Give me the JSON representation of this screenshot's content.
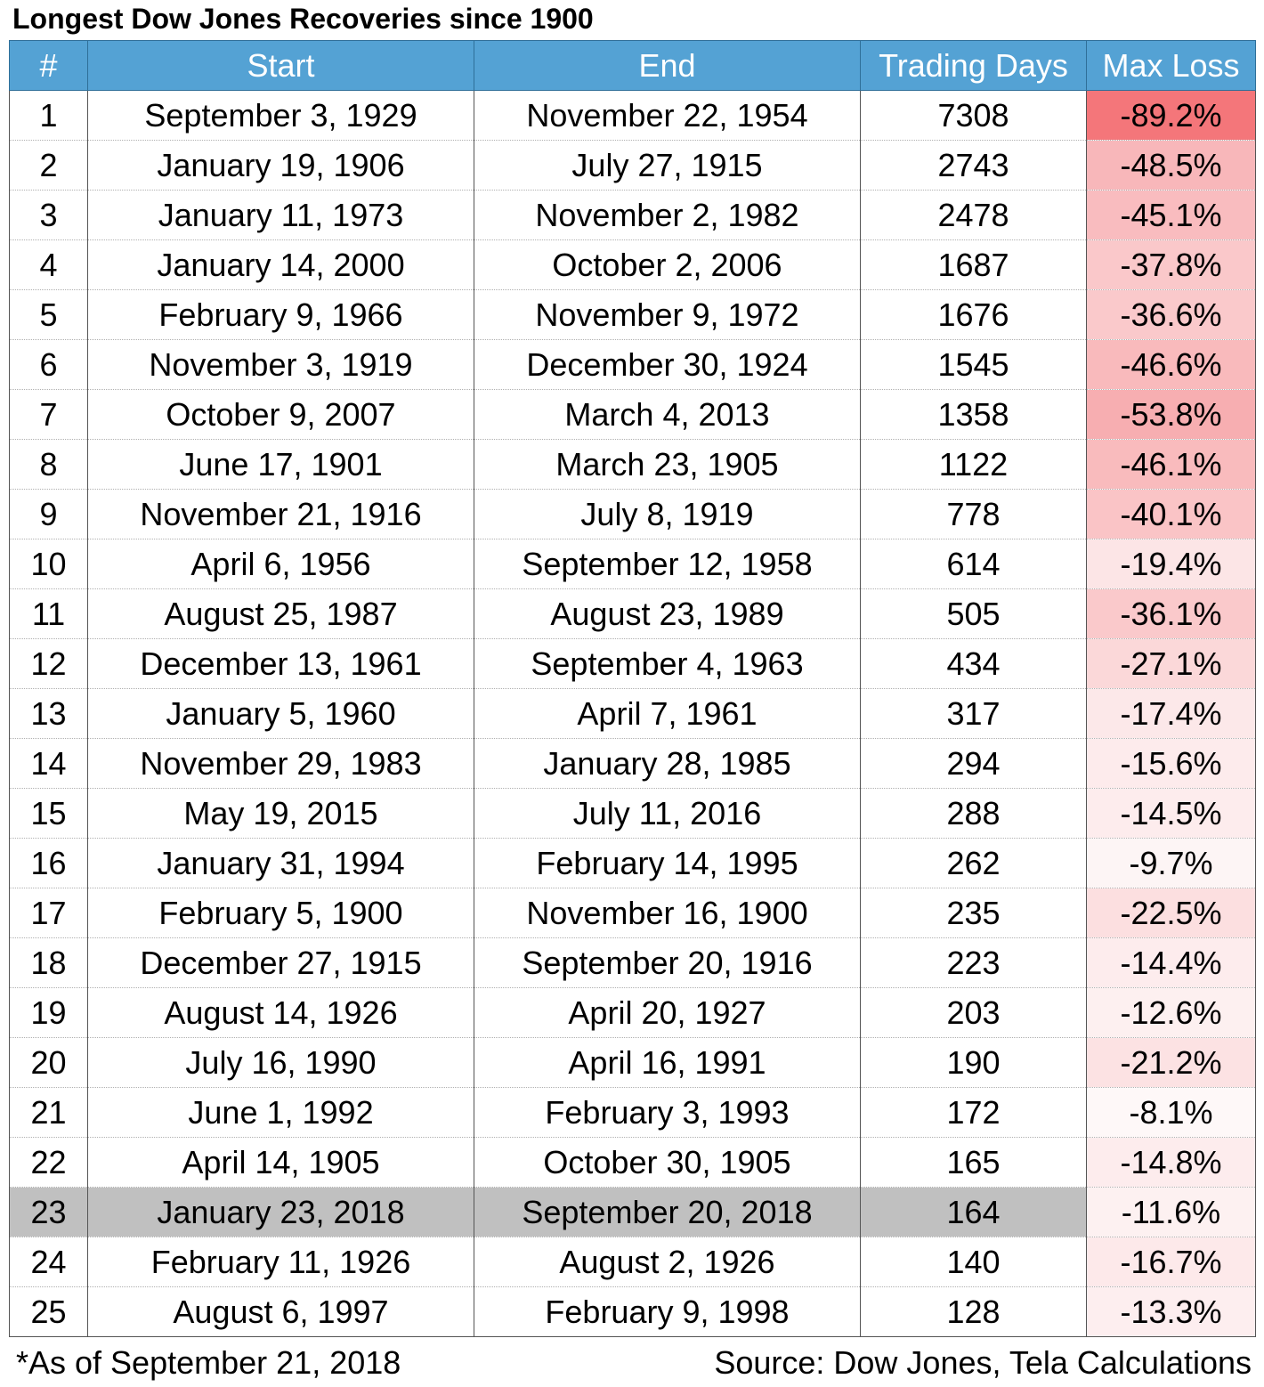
{
  "title": "Longest Dow Jones Recoveries since 1900",
  "table": {
    "headers": [
      "#",
      "Start",
      "End",
      "Trading Days",
      "Max Loss"
    ],
    "rows": [
      {
        "n": "1",
        "start": "September 3, 1929",
        "end": "November 22, 1954",
        "days": "7308",
        "loss": "-89.2%",
        "loss_value": -89.2,
        "loss_color": "#f4767a"
      },
      {
        "n": "2",
        "start": "January 19, 1906",
        "end": "July 27, 1915",
        "days": "2743",
        "loss": "-48.5%",
        "loss_value": -48.5,
        "loss_color": "#f8b7ba"
      },
      {
        "n": "3",
        "start": "January 11, 1973",
        "end": "November 2, 1982",
        "days": "2478",
        "loss": "-45.1%",
        "loss_value": -45.1,
        "loss_color": "#f9bcbf"
      },
      {
        "n": "4",
        "start": "January 14, 2000",
        "end": "October 2, 2006",
        "days": "1687",
        "loss": "-37.8%",
        "loss_value": -37.8,
        "loss_color": "#fac8ca"
      },
      {
        "n": "5",
        "start": "February 9, 1966",
        "end": "November 9, 1972",
        "days": "1676",
        "loss": "-36.6%",
        "loss_value": -36.6,
        "loss_color": "#fac9cb"
      },
      {
        "n": "6",
        "start": "November 3, 1919",
        "end": "December 30, 1924",
        "days": "1545",
        "loss": "-46.6%",
        "loss_value": -46.6,
        "loss_color": "#f9babc"
      },
      {
        "n": "7",
        "start": "October 9, 2007",
        "end": "March 4, 2013",
        "days": "1358",
        "loss": "-53.8%",
        "loss_value": -53.8,
        "loss_color": "#f7aeb1"
      },
      {
        "n": "8",
        "start": "June 17, 1901",
        "end": "March 23, 1905",
        "days": "1122",
        "loss": "-46.1%",
        "loss_value": -46.1,
        "loss_color": "#f9bbbd"
      },
      {
        "n": "9",
        "start": "November 21, 1916",
        "end": "July 8, 1919",
        "days": "778",
        "loss": "-40.1%",
        "loss_value": -40.1,
        "loss_color": "#fac4c6"
      },
      {
        "n": "10",
        "start": "April 6, 1956",
        "end": "September 12, 1958",
        "days": "614",
        "loss": "-19.4%",
        "loss_value": -19.4,
        "loss_color": "#fce5e6"
      },
      {
        "n": "11",
        "start": "August 25, 1987",
        "end": "August 23, 1989",
        "days": "505",
        "loss": "-36.1%",
        "loss_value": -36.1,
        "loss_color": "#fac9cb"
      },
      {
        "n": "12",
        "start": "December 13, 1961",
        "end": "September 4, 1963",
        "days": "434",
        "loss": "-27.1%",
        "loss_value": -27.1,
        "loss_color": "#fbd8d9"
      },
      {
        "n": "13",
        "start": "January 5, 1960",
        "end": "April 7, 1961",
        "days": "317",
        "loss": "-17.4%",
        "loss_value": -17.4,
        "loss_color": "#fce8e9"
      },
      {
        "n": "14",
        "start": "November 29, 1983",
        "end": "January 28, 1985",
        "days": "294",
        "loss": "-15.6%",
        "loss_value": -15.6,
        "loss_color": "#fdebec"
      },
      {
        "n": "15",
        "start": "May 19, 2015",
        "end": "July 11, 2016",
        "days": "288",
        "loss": "-14.5%",
        "loss_value": -14.5,
        "loss_color": "#fdeced"
      },
      {
        "n": "16",
        "start": "January 31, 1994",
        "end": "February 14, 1995",
        "days": "262",
        "loss": "-9.7%",
        "loss_value": -9.7,
        "loss_color": "#fdf5f5"
      },
      {
        "n": "17",
        "start": "February 5, 1900",
        "end": "November 16, 1900",
        "days": "235",
        "loss": "-22.5%",
        "loss_value": -22.5,
        "loss_color": "#fcdfe0"
      },
      {
        "n": "18",
        "start": "December 27, 1915",
        "end": "September 20, 1916",
        "days": "223",
        "loss": "-14.4%",
        "loss_value": -14.4,
        "loss_color": "#fdeced"
      },
      {
        "n": "19",
        "start": "August 14, 1926",
        "end": "April 20, 1927",
        "days": "203",
        "loss": "-12.6%",
        "loss_value": -12.6,
        "loss_color": "#fdf0f0"
      },
      {
        "n": "20",
        "start": "July 16, 1990",
        "end": "April 16, 1991",
        "days": "190",
        "loss": "-21.2%",
        "loss_value": -21.2,
        "loss_color": "#fce2e3"
      },
      {
        "n": "21",
        "start": "June 1, 1992",
        "end": "February 3, 1993",
        "days": "172",
        "loss": "-8.1%",
        "loss_value": -8.1,
        "loss_color": "#fef8f8"
      },
      {
        "n": "22",
        "start": "April 14, 1905",
        "end": "October 30, 1905",
        "days": "165",
        "loss": "-14.8%",
        "loss_value": -14.8,
        "loss_color": "#fdeced"
      },
      {
        "n": "23",
        "start": "January 23, 2018",
        "end": "September 20, 2018",
        "days": "164",
        "loss": "-11.6%",
        "loss_value": -11.6,
        "loss_color": "#fdf1f1",
        "highlighted": true
      },
      {
        "n": "24",
        "start": "February 11, 1926",
        "end": "August 2, 1926",
        "days": "140",
        "loss": "-16.7%",
        "loss_value": -16.7,
        "loss_color": "#fde9ea"
      },
      {
        "n": "25",
        "start": "August 6, 1997",
        "end": "February 9, 1998",
        "days": "128",
        "loss": "-13.3%",
        "loss_value": -13.3,
        "loss_color": "#fdeeef"
      }
    ]
  },
  "footer": {
    "note": "*As of September 21, 2018",
    "source": "Source: Dow Jones, Tela Calculations"
  },
  "colors": {
    "header_bg": "#54a2d4",
    "header_text": "#ffffff",
    "highlight_row": "#c0c0c0"
  }
}
